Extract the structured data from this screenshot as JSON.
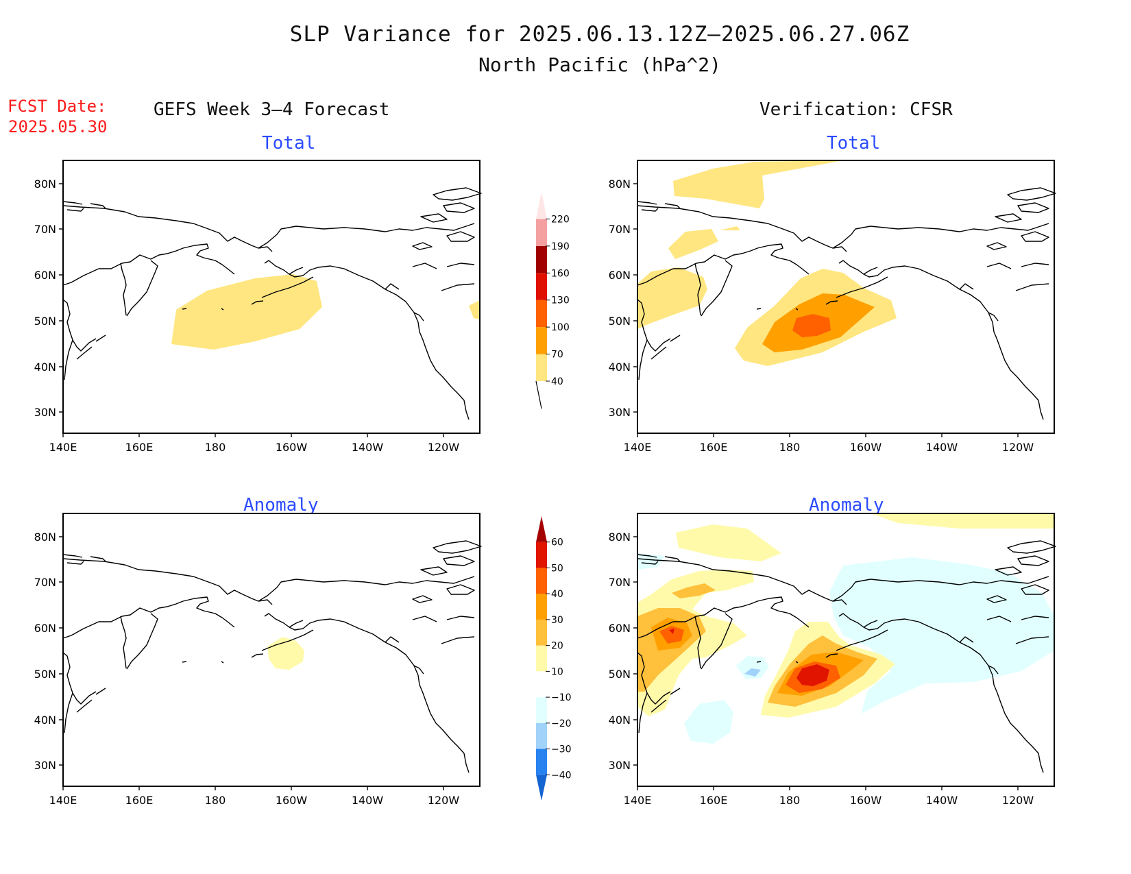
{
  "title": "SLP Variance for 2025.06.13.12Z–2025.06.27.06Z",
  "subtitle": "North Pacific (hPa^2)",
  "fcst_label": "FCST Date:",
  "fcst_date": "2025.05.30",
  "left_column_title": "GEFS Week 3–4 Forecast",
  "right_column_title": "Verification: CFSR",
  "panels": {
    "fcst_total": "Total",
    "verif_total": "Total",
    "fcst_anomaly": "Anomaly",
    "verif_anomaly": "Anomaly"
  },
  "lat_ticks": [
    "80N",
    "70N",
    "60N",
    "50N",
    "40N",
    "30N"
  ],
  "lon_ticks": [
    "140E",
    "160E",
    "180",
    "160W",
    "140W",
    "120W"
  ],
  "colors": {
    "total": [
      "#ffe680",
      "#ffa000",
      "#ff6000",
      "#e01000",
      "#a00000",
      "#f4a0a0",
      "#ffe6e6"
    ],
    "anomaly": [
      "#1464d2",
      "#2882f0",
      "#a0d2fa",
      "#e1ffff",
      "#ffffff",
      "#fffaaa",
      "#ffc03c",
      "#ffa000",
      "#ff6000",
      "#e11400",
      "#a50000"
    ]
  },
  "total_colorbar": {
    "labels": [
      "40",
      "70",
      "100",
      "130",
      "160",
      "190",
      "220"
    ],
    "levels": [
      40,
      70,
      100,
      130,
      160,
      190,
      220
    ]
  },
  "anomaly_colorbar": {
    "labels": [
      "−40",
      "−30",
      "−20",
      "−10",
      "10",
      "20",
      "30",
      "40",
      "50",
      "60"
    ],
    "levels": [
      -40,
      -30,
      -20,
      -10,
      10,
      20,
      30,
      40,
      50,
      60
    ]
  }
}
